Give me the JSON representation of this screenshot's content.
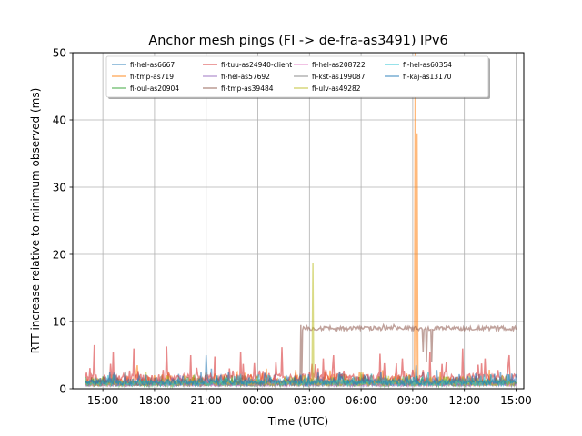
{
  "chart_data": {
    "type": "line",
    "title": "Anchor mesh pings (FI -> de-fra-as3491) IPv6",
    "xlabel": "Time (UTC)",
    "ylabel": "RTT increase relative to minimum observed (ms)",
    "ylim": [
      0,
      50
    ],
    "xlim_hours": [
      13.25,
      39.45
    ],
    "grid": true,
    "legend_placement": "top-center",
    "legend_columns": 4,
    "x_ticks": [
      {
        "label": "15:00",
        "hour": 15
      },
      {
        "label": "18:00",
        "hour": 18
      },
      {
        "label": "21:00",
        "hour": 21
      },
      {
        "label": "00:00",
        "hour": 24
      },
      {
        "label": "03:00",
        "hour": 27
      },
      {
        "label": "06:00",
        "hour": 30
      },
      {
        "label": "09:00",
        "hour": 33
      },
      {
        "label": "12:00",
        "hour": 36
      },
      {
        "label": "15:00",
        "hour": 39
      }
    ],
    "y_ticks": [
      0,
      10,
      20,
      30,
      40,
      50
    ],
    "x_range_data_hours": [
      14.0,
      39.0
    ],
    "series": [
      {
        "name": "fi-hel-as6667",
        "color": "#1f77b4",
        "baseline": 0.5,
        "noise": 0.7,
        "spikes": [
          [
            21.3,
            3.0
          ],
          [
            33.6,
            2.5
          ],
          [
            35.5,
            1.8
          ]
        ]
      },
      {
        "name": "fi-tmp-as719",
        "color": "#ff7f0e",
        "baseline": 0.6,
        "noise": 0.9,
        "spikes": [
          [
            17.0,
            3.5
          ],
          [
            24.5,
            3.0
          ],
          [
            33.15,
            50
          ],
          [
            33.25,
            38
          ]
        ]
      },
      {
        "name": "fi-oul-as20904",
        "color": "#2ca02c",
        "baseline": 0.4,
        "noise": 0.6,
        "spikes": [
          [
            22.5,
            2.0
          ],
          [
            29.0,
            2.2
          ],
          [
            36.5,
            1.6
          ]
        ]
      },
      {
        "name": "fi-tuu-as24940-client",
        "color": "#d62728",
        "baseline": 1.0,
        "noise": 1.2,
        "spikes": [
          [
            14.5,
            6.5
          ],
          [
            15.6,
            5.5
          ],
          [
            16.8,
            6.0
          ],
          [
            18.7,
            6.3
          ],
          [
            20.1,
            5.0
          ],
          [
            21.5,
            4.8
          ],
          [
            23.0,
            5.5
          ],
          [
            25.4,
            6.2
          ],
          [
            27.8,
            4.5
          ],
          [
            28.4,
            5.0
          ],
          [
            31.1,
            5.2
          ],
          [
            32.4,
            4.5
          ],
          [
            34.0,
            5.5
          ],
          [
            35.9,
            6.0
          ],
          [
            37.2,
            4.5
          ],
          [
            38.6,
            5.0
          ]
        ]
      },
      {
        "name": "fi-hel-as57692",
        "color": "#9467bd",
        "baseline": 0.4,
        "noise": 0.5,
        "spikes": [
          [
            19.5,
            2.0
          ],
          [
            30.5,
            1.8
          ]
        ]
      },
      {
        "name": "fi-tmp-as39484",
        "color": "#8c564b",
        "baseline": 0.5,
        "noise": 0.6,
        "plateau": {
          "start": 26.6,
          "end": 39.0,
          "level": 9.0
        },
        "spikes": [
          [
            26.5,
            9.5
          ],
          [
            31.3,
            9.5
          ],
          [
            31.9,
            9.5
          ],
          [
            33.6,
            5.5
          ],
          [
            33.8,
            4.0
          ],
          [
            34.1,
            4.0
          ]
        ]
      },
      {
        "name": "fi-hel-as208722",
        "color": "#e377c2",
        "baseline": 0.4,
        "noise": 0.5,
        "spikes": [
          [
            25.0,
            1.8
          ],
          [
            32.0,
            2.0
          ]
        ]
      },
      {
        "name": "fi-kst-as199087",
        "color": "#7f7f7f",
        "baseline": 0.4,
        "noise": 0.5,
        "spikes": [
          [
            20.5,
            1.6
          ],
          [
            34.5,
            1.8
          ]
        ]
      },
      {
        "name": "fi-ulv-as49282",
        "color": "#bcbd22",
        "baseline": 0.5,
        "noise": 0.6,
        "spikes": [
          [
            27.2,
            18.7
          ],
          [
            17.5,
            2.5
          ],
          [
            30.0,
            2.5
          ],
          [
            32.8,
            2.0
          ]
        ]
      },
      {
        "name": "fi-hel-as60354",
        "color": "#17becf",
        "baseline": 0.5,
        "noise": 0.7,
        "spikes": [
          [
            15.3,
            2.0
          ],
          [
            28.7,
            2.2
          ],
          [
            33.9,
            2.5
          ]
        ]
      },
      {
        "name": "fi-kaj-as13170",
        "color": "#1f77b4",
        "baseline": 0.6,
        "noise": 0.8,
        "spikes": [
          [
            21.0,
            5.0
          ],
          [
            33.2,
            3.5
          ],
          [
            34.4,
            2.8
          ]
        ]
      }
    ]
  }
}
